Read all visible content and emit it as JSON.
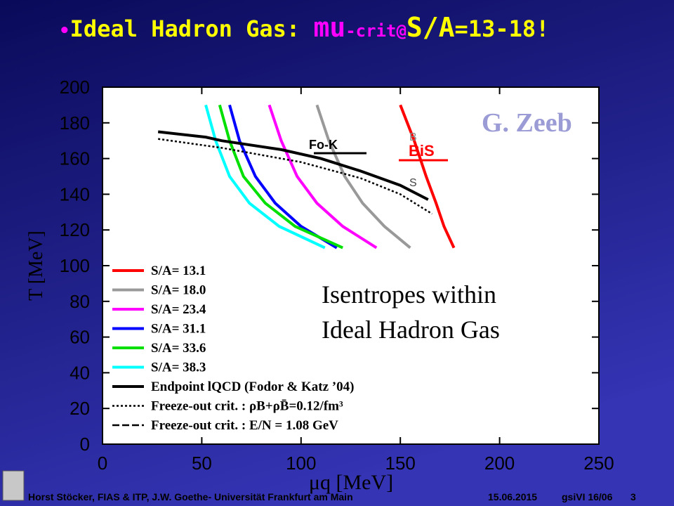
{
  "slide": {
    "title_bullet": "•",
    "title_a": "Ideal Hadron Gas: ",
    "title_b": "mu",
    "title_c": "-crit@",
    "title_d": "S/A",
    "title_e": "=13-18!",
    "footer_left": "Horst Stöcker, FIAS & ITP, J.W. Goethe- Universität Frankfurt am Main",
    "footer_date": "15.06.2015",
    "footer_ref": "gsiVI 16/06",
    "footer_page": "3"
  },
  "chart_data": {
    "type": "line",
    "xlabel": "μq [MeV]",
    "ylabel": "T [MeV]",
    "xlim": [
      0,
      250
    ],
    "ylim": [
      0,
      200
    ],
    "xticks": [
      0,
      50,
      100,
      150,
      200,
      250
    ],
    "yticks": [
      0,
      20,
      40,
      60,
      80,
      100,
      120,
      140,
      160,
      180,
      200
    ],
    "annotations": [
      "Fo-K",
      "BiS",
      "B",
      "S",
      "G. Zeeb",
      "Isentropes within",
      "Ideal Hadron Gas"
    ],
    "series": [
      {
        "name": "S/A= 13.1",
        "color": "#ff0000",
        "dash": "solid",
        "x": [
          150,
          157,
          163,
          168,
          172,
          177
        ],
        "values": [
          190,
          170,
          150,
          135,
          122,
          110
        ]
      },
      {
        "name": "S/A= 18.0",
        "color": "#999999",
        "dash": "solid",
        "x": [
          108,
          114,
          122,
          131,
          142,
          155
        ],
        "values": [
          190,
          170,
          150,
          135,
          122,
          110
        ]
      },
      {
        "name": "S/A= 23.4",
        "color": "#ff00ff",
        "dash": "solid",
        "x": [
          84,
          90,
          98,
          108,
          121,
          138
        ],
        "values": [
          190,
          170,
          150,
          135,
          122,
          110
        ]
      },
      {
        "name": "S/A= 31.1",
        "color": "#0000ff",
        "dash": "solid",
        "x": [
          64,
          69,
          77,
          87,
          100,
          118
        ],
        "values": [
          190,
          170,
          150,
          135,
          122,
          110
        ]
      },
      {
        "name": "S/A= 33.6",
        "color": "#00e000",
        "dash": "solid",
        "x": [
          59,
          64,
          71,
          82,
          97,
          121
        ],
        "values": [
          190,
          170,
          150,
          135,
          122,
          110
        ]
      },
      {
        "name": "S/A= 38.3",
        "color": "#00ffff",
        "dash": "solid",
        "x": [
          52,
          57,
          64,
          74,
          89,
          112
        ],
        "values": [
          190,
          170,
          150,
          135,
          122,
          110
        ]
      },
      {
        "name": "Endpoint lQCD (Fodor & Katz ’04)",
        "color": "#000000",
        "dash": "solid",
        "x": [
          28,
          52,
          60,
          90,
          110,
          130,
          150,
          164
        ],
        "values": [
          175,
          172,
          170,
          165,
          160,
          153,
          145,
          137
        ]
      },
      {
        "name": "Freeze-out crit. : ρB+ρB̄=0.12/fm³",
        "color": "#000000",
        "dash": "dotted",
        "x": [
          28,
          60,
          100,
          130,
          150,
          166
        ],
        "values": [
          171,
          166,
          158,
          149,
          140,
          129
        ]
      },
      {
        "name": "Freeze-out crit. : E/N = 1.08 GeV",
        "color": "#000000",
        "dash": "dashed",
        "x": [],
        "values": []
      }
    ]
  }
}
